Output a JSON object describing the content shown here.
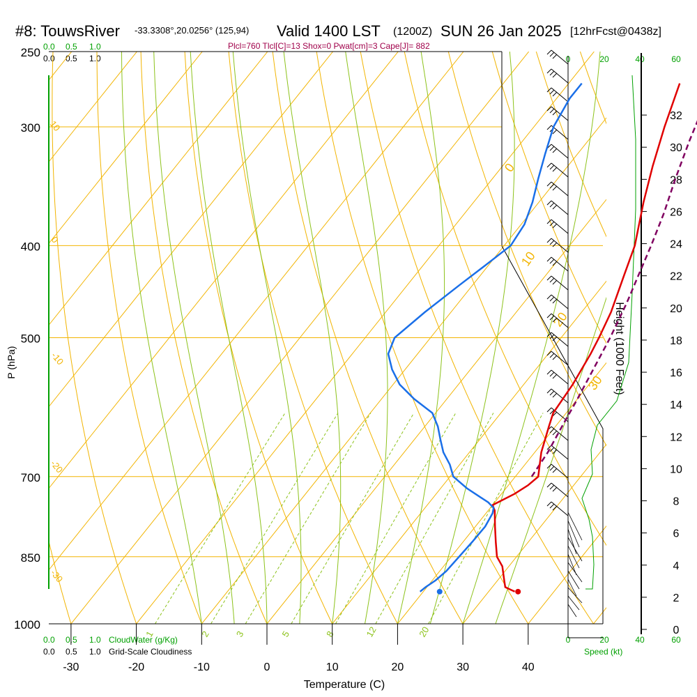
{
  "header": {
    "station": "#8: TouwsRiver",
    "coords": "-33.3308°,20.0256° (125,94)",
    "valid": "Valid 1400 LST",
    "zulu": "(1200Z)",
    "date": "SUN 26 Jan 2025",
    "forecast": "[12hrFcst@0438z]",
    "indices": "Plcl=760 Tlcl[C]=13 Shox=0 Pwat[cm]=3 Cape[J]= 882"
  },
  "colors": {
    "temperature": "#e00000",
    "dewpoint": "#1a6fe8",
    "parcel": "#800060",
    "isotherm": "#f2b400",
    "dry_adiabat": "#f2b400",
    "moist_adiabat": "#8cc21a",
    "mixing_ratio": "#8cc21a",
    "cloud": "#00a000",
    "indices": "#a0004a"
  },
  "chart_data": {
    "type": "skew-t sounding",
    "xlabel": "Temperature (C)",
    "ylabel": "P (hPa)",
    "right_label": "Height (1000 Feet)",
    "x_ticks": [
      "-30",
      "-20",
      "-10",
      "0",
      "10",
      "20",
      "30",
      "40"
    ],
    "x_tick_values": [
      -30,
      -20,
      -10,
      0,
      10,
      20,
      30,
      40
    ],
    "p_ticks": [
      "250",
      "300",
      "400",
      "500",
      "700",
      "850",
      "1000"
    ],
    "p_tick_values": [
      250,
      300,
      400,
      500,
      700,
      850,
      1000
    ],
    "height_ticks": [
      "0",
      "2",
      "4",
      "6",
      "8",
      "10",
      "12",
      "14",
      "16",
      "18",
      "20",
      "22",
      "24",
      "26",
      "28",
      "30",
      "32"
    ],
    "height_tick_values": [
      0,
      2,
      4,
      6,
      8,
      10,
      12,
      14,
      16,
      18,
      20,
      22,
      24,
      26,
      28,
      30,
      32
    ],
    "speed_ticks": [
      "0",
      "20",
      "40",
      "60"
    ],
    "speed_label": "Speed (kt)",
    "cloud_ticks": [
      "0.0",
      "0.5",
      "1.0"
    ],
    "cloud_water_label": "CloudWater (g/Kg)",
    "cloudiness_label": "Grid-Scale Cloudiness",
    "dry_adiabat_labels": [
      "0",
      "10",
      "20",
      "30"
    ],
    "isotherm_labels": [
      "10",
      "0",
      "-10",
      "-20",
      "-30"
    ],
    "mixing_ratio_labels": [
      "1",
      "2",
      "3",
      "5",
      "8",
      "12",
      "20"
    ],
    "temperature": {
      "p": [
        925,
        920,
        915,
        900,
        870,
        850,
        820,
        790,
        760,
        750,
        730,
        715,
        700,
        660,
        620,
        600,
        560,
        520,
        500,
        470,
        430,
        400,
        360,
        330,
        300,
        270
      ],
      "t": [
        34,
        33,
        32,
        31,
        29,
        27,
        25,
        23,
        21,
        20,
        22,
        23,
        23.5,
        21,
        19,
        18,
        17.5,
        16.5,
        15.8,
        14.5,
        12,
        10,
        6,
        3,
        0,
        -3
      ]
    },
    "dewpoint": {
      "p": [
        925,
        915,
        900,
        880,
        850,
        820,
        790,
        765,
        755,
        745,
        735,
        720,
        700,
        680,
        660,
        640,
        620,
        600,
        580,
        560,
        540,
        520,
        500,
        470,
        440,
        420,
        400,
        380,
        360,
        340,
        320,
        300,
        280,
        270
      ],
      "td": [
        19.5,
        19.8,
        20.5,
        21,
        21.2,
        21.4,
        21.5,
        21,
        20.5,
        19,
        17,
        14,
        10.5,
        8.5,
        6,
        4,
        2,
        -0.5,
        -5,
        -9,
        -12,
        -14.5,
        -15.5,
        -14,
        -12,
        -10.5,
        -9,
        -9.5,
        -11,
        -13,
        -15,
        -17,
        -18,
        -18
      ]
    },
    "parcel": {
      "p": [
        700,
        660,
        620,
        580,
        540,
        500,
        460,
        430,
        400,
        370,
        340,
        310,
        280,
        270
      ],
      "t": [
        22.5,
        22,
        21,
        20,
        18.8,
        17.5,
        15.8,
        14.2,
        12.5,
        10.5,
        8,
        5.5,
        3,
        2
      ]
    },
    "surface_points": {
      "p": 925,
      "t": 34.5,
      "td": 22.5
    }
  }
}
